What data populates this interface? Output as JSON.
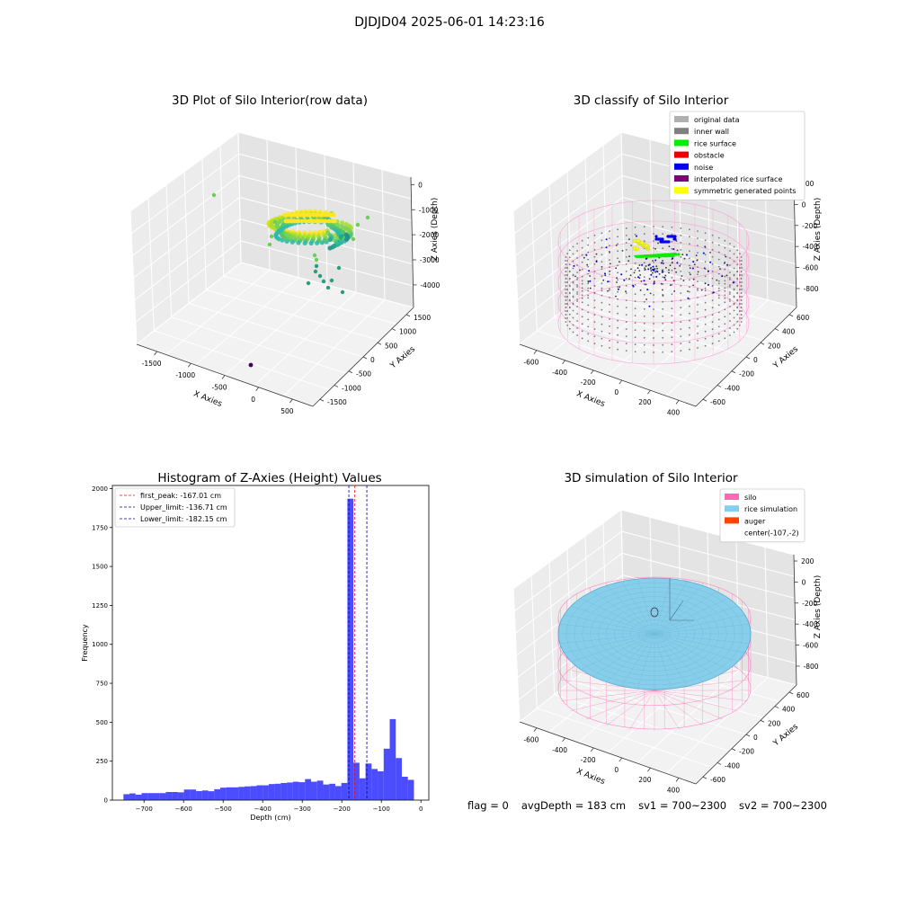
{
  "suptitle": "DJDJD04 2025-06-01 14:23:16",
  "footer": {
    "flag": "flag = 0",
    "avg": "avgDepth = 183 cm",
    "sv1": "sv1 = 700~2300",
    "sv2": "sv2 = 700~2300"
  },
  "chart_data": [
    {
      "type": "scatter",
      "panel": "top-left",
      "title": "3D Plot of Silo Interior(row data)",
      "xlabel": "X Axies",
      "ylabel": "Y Axies",
      "zlabel": "Z Axies (Depth)",
      "x_ticks": [
        "-1500",
        "-1000",
        "-500",
        "0",
        "500"
      ],
      "y_ticks": [
        "1500",
        "1000",
        "500",
        "0",
        "-500",
        "-1000",
        "-1500"
      ],
      "z_ticks": [
        "0",
        "-1000",
        "-2000",
        "-3000",
        "-4000"
      ],
      "colormap": "viridis"
    },
    {
      "type": "scatter",
      "panel": "top-right",
      "title": "3D classify of Silo Interior",
      "xlabel": "X Axies",
      "ylabel": "Y Axies",
      "zlabel": "Z Axies (Depth)",
      "x_ticks": [
        "-600",
        "-400",
        "-200",
        "0",
        "200",
        "400"
      ],
      "y_ticks": [
        "600",
        "400",
        "200",
        "0",
        "-200",
        "-400",
        "-600"
      ],
      "z_ticks": [
        "200",
        "0",
        "-200",
        "-400",
        "-600",
        "-800"
      ],
      "legend_position": "top-right",
      "legend": [
        {
          "label": "original data",
          "color": "#b0b0b0"
        },
        {
          "label": "inner wall",
          "color": "#808080"
        },
        {
          "label": "rice surface",
          "color": "#00ee00"
        },
        {
          "label": "obstacle",
          "color": "#ee0000"
        },
        {
          "label": "noise",
          "color": "#0000ee"
        },
        {
          "label": "interpolated rice surface",
          "color": "#800080"
        },
        {
          "label": "symmetric generated points",
          "color": "#ffff00"
        }
      ]
    },
    {
      "type": "bar",
      "panel": "bottom-left",
      "title": "Histogram of Z-Axies (Height) Values",
      "xlabel": "Depth (cm)",
      "ylabel": "Frequency",
      "xlim": [
        -780,
        20
      ],
      "ylim": [
        0,
        2020
      ],
      "x_ticks": [
        -700,
        -600,
        -500,
        -400,
        -300,
        -200,
        -100,
        0
      ],
      "y_ticks": [
        0,
        250,
        500,
        750,
        1000,
        1250,
        1500,
        1750,
        2000
      ],
      "bar_color": "#0000ff",
      "bin_width": 15.3,
      "bin_start": -752,
      "values": [
        38,
        43,
        35,
        45,
        45,
        45,
        45,
        52,
        52,
        50,
        68,
        68,
        58,
        62,
        57,
        70,
        80,
        82,
        82,
        85,
        88,
        90,
        95,
        95,
        103,
        105,
        110,
        113,
        118,
        115,
        135,
        118,
        125,
        100,
        105,
        90,
        110,
        1935,
        240,
        140,
        235,
        200,
        185,
        330,
        520,
        270,
        150,
        130
      ],
      "lines": [
        {
          "label": "first_peak: -167.01 cm",
          "x": -167.01,
          "color": "#ff0000"
        },
        {
          "label": "Upper_limit: -136.71 cm",
          "x": -136.71,
          "color": "#0000aa"
        },
        {
          "label": "Lower_limit: -182.15 cm",
          "x": -182.15,
          "color": "#0000aa"
        }
      ],
      "legend_position": "top-left"
    },
    {
      "type": "scatter",
      "panel": "bottom-right",
      "title": "3D simulation of Silo Interior",
      "xlabel": "X Axies",
      "ylabel": "Y Axies",
      "zlabel": "Z Axies (Depth)",
      "x_ticks": [
        "-600",
        "-400",
        "-200",
        "0",
        "200",
        "400"
      ],
      "y_ticks": [
        "600",
        "400",
        "200",
        "0",
        "-200",
        "-400",
        "-600"
      ],
      "z_ticks": [
        "200",
        "0",
        "-200",
        "-400",
        "-600",
        "-800"
      ],
      "legend_position": "top-right",
      "legend": [
        {
          "label": "silo",
          "color": "#ff69b4"
        },
        {
          "label": "rice simulation",
          "color": "#87ceeb"
        },
        {
          "label": "auger",
          "color": "#ff4500"
        },
        {
          "label": "center(-107,-2)",
          "color": ""
        }
      ]
    }
  ]
}
